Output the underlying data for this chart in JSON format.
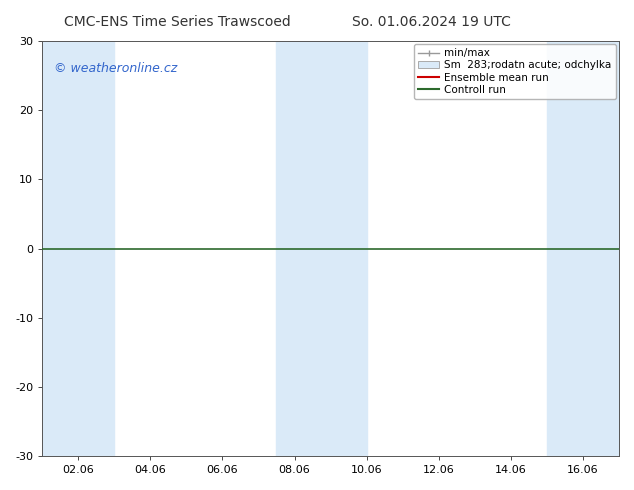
{
  "title_left": "CMC-ENS Time Series Trawscoed",
  "title_right": "So. 01.06.2024 19 UTC",
  "watermark": "© weatheronline.cz",
  "ylim": [
    -30,
    30
  ],
  "yticks": [
    -30,
    -20,
    -10,
    0,
    10,
    20,
    30
  ],
  "xlabel_dates": [
    "02.06",
    "04.06",
    "06.06",
    "08.06",
    "10.06",
    "12.06",
    "14.06",
    "16.06"
  ],
  "x_values": [
    2,
    4,
    6,
    8,
    10,
    12,
    14,
    16
  ],
  "x_min": 1.0,
  "x_max": 17.0,
  "shaded_columns": [
    {
      "x_start": 1.0,
      "x_end": 3.0
    },
    {
      "x_start": 7.5,
      "x_end": 10.0
    },
    {
      "x_start": 15.0,
      "x_end": 17.0
    }
  ],
  "shade_color": "#daeaf8",
  "control_run_color": "#2d6a2d",
  "control_run_y": 0,
  "ensemble_mean_color": "#ff0000",
  "legend_items": [
    {
      "label": "min/max",
      "color": "#aaaaaa",
      "type": "minmax"
    },
    {
      "label": "Sm  283;rodatn acute; odchylka",
      "color": "#cccccc",
      "type": "box"
    },
    {
      "label": "Ensemble mean run",
      "color": "#cc0000",
      "type": "line"
    },
    {
      "label": "Controll run",
      "color": "#2d6a2d",
      "type": "line"
    }
  ],
  "background_color": "#ffffff",
  "title_fontsize": 10,
  "tick_fontsize": 8,
  "watermark_color": "#3366cc",
  "watermark_fontsize": 9,
  "legend_fontsize": 7.5,
  "spine_color": "#555555"
}
